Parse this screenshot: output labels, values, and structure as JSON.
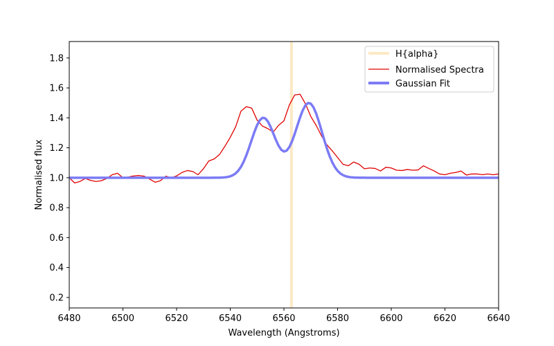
{
  "chart_data": {
    "type": "line",
    "title": "",
    "xlabel": "Wavelength (Angstroms)",
    "ylabel": "Normalised flux",
    "xlim": [
      6480,
      6640
    ],
    "ylim": [
      0.13,
      1.91
    ],
    "xticks": [
      6480,
      6500,
      6520,
      6540,
      6560,
      6580,
      6600,
      6620,
      6640
    ],
    "yticks": [
      0.2,
      0.4,
      0.6,
      0.8,
      1.0,
      1.2,
      1.4,
      1.6,
      1.8
    ],
    "ytick_labels": [
      "0.2",
      "0.4",
      "0.6",
      "0.8",
      "1.0",
      "1.2",
      "1.4",
      "1.6",
      "1.8"
    ],
    "grid": false,
    "legend_position": "top-right",
    "vline": {
      "name": "H{alpha}",
      "x": 6562.8,
      "color": "#fde9c4"
    },
    "series": [
      {
        "name": "Normalised Spectra",
        "color": "#e00000",
        "x": [
          6480,
          6482,
          6484,
          6486,
          6488,
          6490,
          6492,
          6494,
          6496,
          6498,
          6500,
          6502,
          6504,
          6506,
          6508,
          6510,
          6512,
          6514,
          6516,
          6518,
          6520,
          6522,
          6524,
          6526,
          6528,
          6530,
          6532,
          6534,
          6536,
          6538,
          6540,
          6542,
          6544,
          6546,
          6548,
          6550,
          6552,
          6554,
          6556,
          6558,
          6560,
          6562,
          6564,
          6566,
          6568,
          6570,
          6572,
          6574,
          6576,
          6578,
          6580,
          6582,
          6584,
          6586,
          6588,
          6590,
          6592,
          6594,
          6596,
          6598,
          6600,
          6602,
          6604,
          6606,
          6608,
          6610,
          6612,
          6614,
          6616,
          6618,
          6620,
          6622,
          6624,
          6626,
          6628,
          6630,
          6632,
          6634,
          6636,
          6638,
          6640
        ],
        "y": [
          1.0,
          0.965,
          0.975,
          0.995,
          0.982,
          0.975,
          0.98,
          0.995,
          1.02,
          1.03,
          1.0,
          1.005,
          1.012,
          1.015,
          1.01,
          0.99,
          0.97,
          0.98,
          1.01,
          1.0,
          1.012,
          1.035,
          1.048,
          1.042,
          1.02,
          1.06,
          1.112,
          1.125,
          1.155,
          1.21,
          1.27,
          1.34,
          1.445,
          1.475,
          1.465,
          1.385,
          1.345,
          1.328,
          1.305,
          1.35,
          1.38,
          1.485,
          1.553,
          1.558,
          1.495,
          1.41,
          1.35,
          1.28,
          1.22,
          1.18,
          1.135,
          1.09,
          1.08,
          1.105,
          1.09,
          1.06,
          1.065,
          1.062,
          1.045,
          1.07,
          1.065,
          1.05,
          1.048,
          1.055,
          1.05,
          1.052,
          1.08,
          1.062,
          1.045,
          1.025,
          1.02,
          1.03,
          1.035,
          1.045,
          1.018,
          1.025,
          1.025,
          1.02,
          1.025,
          1.02,
          1.025
        ]
      },
      {
        "name": "Gaussian Fit",
        "color": "#7b7bf5",
        "model": {
          "baseline": 1.0,
          "components": [
            {
              "amplitude": 0.4,
              "center": 6552.3,
              "sigma": 4.5
            },
            {
              "amplitude": 0.5,
              "center": 6569.3,
              "sigma": 4.9
            }
          ],
          "step": 1
        }
      }
    ]
  }
}
